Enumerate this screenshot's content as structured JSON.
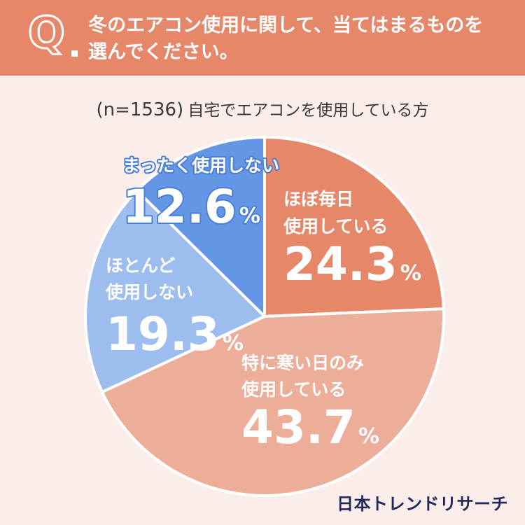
{
  "header": {
    "q_letter": "Q",
    "question_line1": "冬のエアコン使用に関して、当てはまるものを",
    "question_line2": "選んでください。"
  },
  "subtitle": {
    "n_label": "(n=1536)",
    "text": "自宅でエアコンを使用している方"
  },
  "brand": "日本トレンドリサーチ",
  "colors": {
    "header_bg": "#e6876a",
    "page_bg": "#fbeeea",
    "daily": "#e6876a",
    "cold_days": "#ecad99",
    "rarely": "#9dbdee",
    "never": "#6596e6"
  },
  "chart_data": {
    "type": "pie",
    "title": "冬のエアコン使用に関して、当てはまるものを選んでください。",
    "slices": [
      {
        "id": "daily",
        "label_lines": [
          "ほぼ毎日",
          "使用している"
        ],
        "value": 24.3,
        "value_text": "24.3",
        "unit": "%"
      },
      {
        "id": "cold_days",
        "label_lines": [
          "特に寒い日のみ",
          "使用している"
        ],
        "value": 43.7,
        "value_text": "43.7",
        "unit": "%"
      },
      {
        "id": "rarely",
        "label_lines": [
          "ほとんど",
          "使用しない"
        ],
        "value": 19.3,
        "value_text": "19.3",
        "unit": "%"
      },
      {
        "id": "never",
        "label_lines": [
          "まったく使用しない"
        ],
        "value": 12.6,
        "value_text": "12.6",
        "unit": "%"
      }
    ],
    "start": "12 o'clock",
    "direction": "clockwise"
  }
}
